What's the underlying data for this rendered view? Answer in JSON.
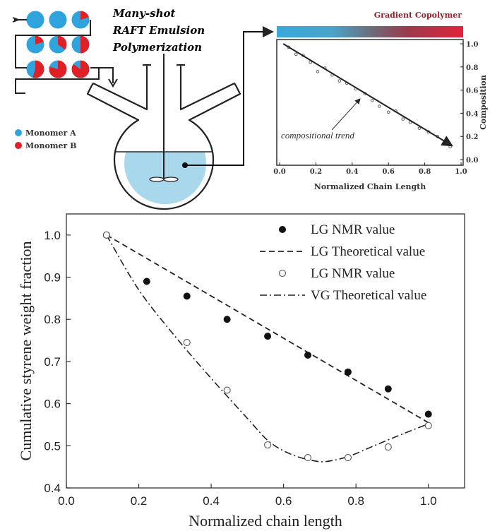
{
  "colors": {
    "monomer_a": "#2ea3dc",
    "monomer_b": "#e02027",
    "flask_liquid": "#a9d8ec",
    "gradient_start": "#37a9da",
    "gradient_end": "#e0243a"
  },
  "schematic": {
    "title_line1": "Many-shot",
    "title_line2": "RAFT Emulsion",
    "title_line3": "Polymerization",
    "legend_a": "Monomer A",
    "legend_b": "Monomer B",
    "monomer_b_fraction_rows": [
      [
        0.0,
        0.0,
        0.2
      ],
      [
        0.2,
        0.35,
        0.5
      ],
      [
        0.55,
        0.8,
        0.85
      ]
    ]
  },
  "inset": {
    "gradient_label": "Gradient Copolymer",
    "xlabel": "Normalized Chain Length",
    "ylabel": "Composition",
    "annotation": "compositional trend",
    "x_ticks": [
      "0.0",
      "0.2",
      "0.4",
      "0.6",
      "0.8",
      "1.0"
    ],
    "y_ticks": [
      "0.0",
      "0.2",
      "0.4",
      "0.6",
      "0.8",
      "1.0"
    ],
    "trend_start": [
      0.02,
      1.0
    ],
    "trend_end": [
      0.95,
      0.12
    ],
    "scatter": [
      [
        0.05,
        0.97
      ],
      [
        0.09,
        0.91
      ],
      [
        0.13,
        0.9
      ],
      [
        0.17,
        0.84
      ],
      [
        0.21,
        0.76
      ],
      [
        0.25,
        0.79
      ],
      [
        0.29,
        0.73
      ],
      [
        0.33,
        0.68
      ],
      [
        0.37,
        0.66
      ],
      [
        0.42,
        0.61
      ],
      [
        0.47,
        0.57
      ],
      [
        0.51,
        0.51
      ],
      [
        0.55,
        0.46
      ],
      [
        0.6,
        0.41
      ],
      [
        0.64,
        0.42
      ],
      [
        0.68,
        0.35
      ],
      [
        0.72,
        0.32
      ],
      [
        0.77,
        0.27
      ],
      [
        0.82,
        0.24
      ],
      [
        0.87,
        0.2
      ],
      [
        0.91,
        0.15
      ],
      [
        0.94,
        0.11
      ]
    ]
  },
  "chart_data": {
    "type": "scatter",
    "xlabel": "Normalized chain length",
    "ylabel": "Cumulative styrene weight fraction",
    "xlim": [
      0.0,
      1.1
    ],
    "ylim": [
      0.4,
      1.05
    ],
    "x_ticks": [
      0.0,
      0.2,
      0.4,
      0.6,
      0.8,
      1.0
    ],
    "y_ticks": [
      0.4,
      0.5,
      0.6,
      0.7,
      0.8,
      0.9,
      1.0
    ],
    "x_tick_labels": [
      "0.0",
      "0.2",
      "0.4",
      "0.6",
      "0.8",
      "1.0"
    ],
    "y_tick_labels": [
      "0.4",
      "0.5",
      "0.6",
      "0.7",
      "0.8",
      "0.9",
      "1.0"
    ],
    "legend_position": "top-right",
    "series": [
      {
        "name": "LG NMR value",
        "style": "filled-circle",
        "x": [
          0.111,
          0.222,
          0.333,
          0.444,
          0.556,
          0.667,
          0.778,
          0.889,
          1.0
        ],
        "y": [
          1.0,
          0.89,
          0.855,
          0.8,
          0.76,
          0.715,
          0.675,
          0.635,
          0.575
        ]
      },
      {
        "name": "LG Theoretical value",
        "style": "dashed-line",
        "x": [
          0.111,
          1.0
        ],
        "y": [
          1.0,
          0.555
        ]
      },
      {
        "name": "LG NMR value",
        "style": "open-circle",
        "x": [
          0.111,
          0.333,
          0.444,
          0.556,
          0.667,
          0.778,
          0.889,
          1.0
        ],
        "y": [
          1.0,
          0.745,
          0.632,
          0.502,
          0.472,
          0.472,
          0.497,
          0.548
        ]
      },
      {
        "name": "VG Theoretical value",
        "style": "dash-dot-line",
        "x": [
          0.111,
          0.2,
          0.3,
          0.4,
          0.5,
          0.56,
          0.62,
          0.68,
          0.72,
          0.78,
          0.85,
          0.92,
          1.0
        ],
        "y": [
          1.0,
          0.87,
          0.76,
          0.66,
          0.565,
          0.51,
          0.48,
          0.465,
          0.463,
          0.475,
          0.5,
          0.525,
          0.552
        ]
      }
    ]
  }
}
